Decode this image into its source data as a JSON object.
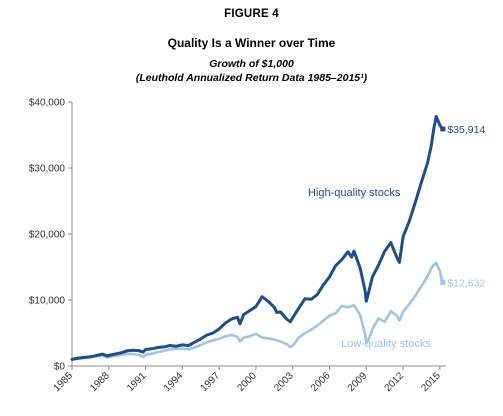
{
  "figure": {
    "label": "FIGURE 4",
    "title": "Quality Is a Winner over Time",
    "subtitle_line1": "Growth of $1,000",
    "subtitle_line2": "(Leuthold Annualized Return Data 1985–2015¹)"
  },
  "chart_data": {
    "type": "line",
    "title": "Quality Is a Winner over Time",
    "subtitle": "Growth of $1,000",
    "xlabel": "",
    "ylabel": "",
    "xlim": [
      1985,
      2015.5
    ],
    "ylim": [
      0,
      40000
    ],
    "y_ticks": [
      0,
      10000,
      20000,
      30000,
      40000
    ],
    "y_tick_labels": [
      "$0",
      "$10,000",
      "$20,000",
      "$30,000",
      "$40,000"
    ],
    "x_ticks": [
      1985,
      1988,
      1991,
      1994,
      1997,
      2000,
      2003,
      2006,
      2009,
      2012,
      2015
    ],
    "x_tick_labels": [
      "1985",
      "1988",
      "1991",
      "1994",
      "1997",
      "2000",
      "2003",
      "2006",
      "2009",
      "2012",
      "2015"
    ],
    "grid": false,
    "legend": "none",
    "series": [
      {
        "name": "High-quality stocks",
        "color": "#1f4e8c",
        "end_label": "$35,914",
        "x": [
          1985.0,
          1985.5,
          1986.0,
          1986.5,
          1987.0,
          1987.5,
          1987.9,
          1988.0,
          1988.5,
          1989.0,
          1989.5,
          1990.0,
          1990.5,
          1990.8,
          1991.0,
          1991.5,
          1992.0,
          1992.5,
          1993.0,
          1993.5,
          1994.0,
          1994.5,
          1995.0,
          1995.5,
          1996.0,
          1996.5,
          1997.0,
          1997.5,
          1998.0,
          1998.5,
          1998.7,
          1999.0,
          1999.5,
          2000.0,
          2000.5,
          2001.0,
          2001.5,
          2001.7,
          2002.0,
          2002.5,
          2002.8,
          2003.0,
          2003.5,
          2004.0,
          2004.5,
          2005.0,
          2005.5,
          2006.0,
          2006.5,
          2007.0,
          2007.5,
          2007.8,
          2008.0,
          2008.5,
          2008.9,
          2009.0,
          2009.2,
          2009.5,
          2010.0,
          2010.5,
          2011.0,
          2011.5,
          2011.7,
          2012.0,
          2012.5,
          2013.0,
          2013.5,
          2014.0,
          2014.3,
          2014.5,
          2014.7,
          2015.0,
          2015.2
        ],
        "values": [
          1000,
          1200,
          1300,
          1400,
          1600,
          1800,
          1500,
          1600,
          1800,
          2000,
          2300,
          2400,
          2300,
          2100,
          2500,
          2600,
          2800,
          2900,
          3100,
          3000,
          3200,
          3100,
          3600,
          4100,
          4700,
          5000,
          5600,
          6500,
          7100,
          7400,
          6400,
          7800,
          8400,
          9000,
          10500,
          9800,
          8900,
          8100,
          8200,
          7100,
          6700,
          7300,
          8800,
          10200,
          10100,
          10800,
          12300,
          13500,
          15200,
          16100,
          17300,
          16500,
          17400,
          14800,
          11400,
          9800,
          11200,
          13500,
          15300,
          17400,
          18700,
          16400,
          15700,
          19600,
          21900,
          24800,
          27900,
          30800,
          33400,
          35900,
          37800,
          36500,
          35914
        ]
      },
      {
        "name": "Low-quality stocks",
        "color": "#9ec4e6",
        "end_label": "$12,632",
        "x": [
          1985.0,
          1985.5,
          1986.0,
          1986.5,
          1987.0,
          1987.5,
          1987.9,
          1988.0,
          1988.5,
          1989.0,
          1989.5,
          1990.0,
          1990.5,
          1990.8,
          1991.0,
          1991.5,
          1992.0,
          1992.5,
          1993.0,
          1993.5,
          1994.0,
          1994.5,
          1995.0,
          1995.5,
          1996.0,
          1996.5,
          1997.0,
          1997.5,
          1998.0,
          1998.5,
          1998.7,
          1999.0,
          1999.5,
          2000.0,
          2000.5,
          2001.0,
          2001.5,
          2002.0,
          2002.5,
          2002.8,
          2003.0,
          2003.5,
          2004.0,
          2004.5,
          2005.0,
          2005.5,
          2006.0,
          2006.5,
          2007.0,
          2007.5,
          2008.0,
          2008.5,
          2008.9,
          2009.0,
          2009.2,
          2009.5,
          2010.0,
          2010.5,
          2011.0,
          2011.5,
          2011.7,
          2012.0,
          2012.5,
          2013.0,
          2013.5,
          2014.0,
          2014.3,
          2014.5,
          2014.7,
          2015.0,
          2015.2
        ],
        "values": [
          1000,
          1100,
          1200,
          1300,
          1450,
          1600,
          1300,
          1350,
          1500,
          1700,
          1850,
          1800,
          1650,
          1350,
          1700,
          1850,
          2100,
          2300,
          2550,
          2600,
          2650,
          2500,
          2800,
          3200,
          3600,
          3900,
          4100,
          4500,
          4700,
          4400,
          3700,
          4300,
          4500,
          4900,
          4300,
          4200,
          4000,
          3700,
          3300,
          2900,
          3100,
          4300,
          5000,
          5500,
          6100,
          6900,
          7600,
          8000,
          9100,
          8900,
          9200,
          7700,
          4800,
          3500,
          4100,
          5600,
          7200,
          6700,
          8300,
          7600,
          6900,
          8200,
          9400,
          10600,
          12100,
          13600,
          14800,
          15300,
          15600,
          14400,
          12632
        ]
      }
    ]
  }
}
